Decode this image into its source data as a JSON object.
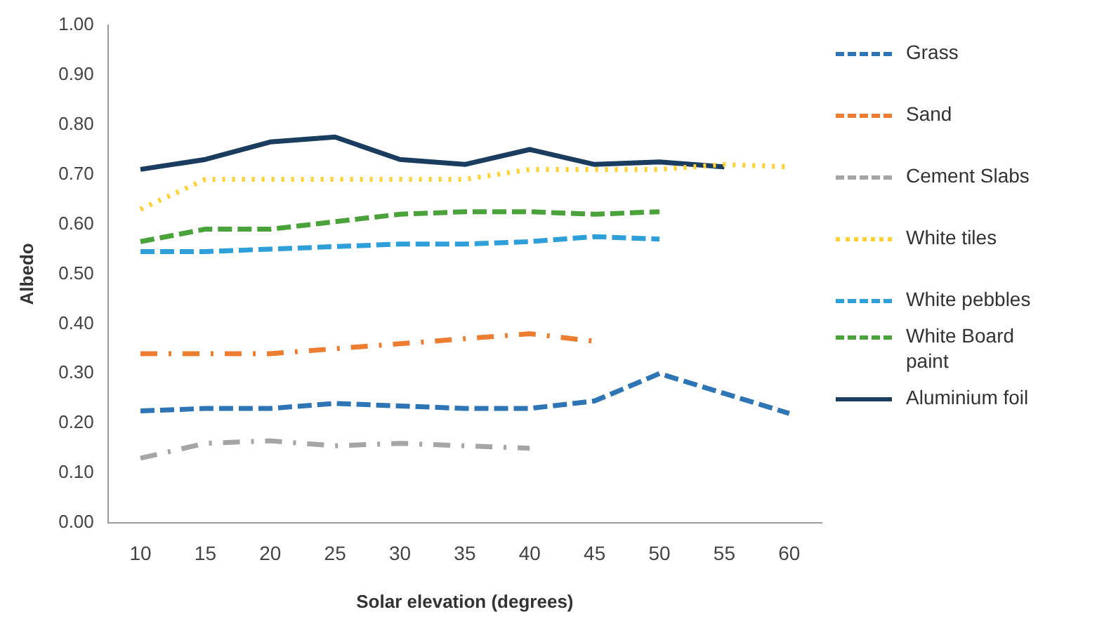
{
  "chart_data": {
    "type": "line",
    "xlabel": "Solar elevation (degrees)",
    "ylabel": "Albedo",
    "categories": [
      "10",
      "15",
      "20",
      "25",
      "30",
      "35",
      "40",
      "45",
      "50",
      "55",
      "60"
    ],
    "ylim": [
      0,
      1
    ],
    "yticks": [
      {
        "value": 0,
        "label": "0.00"
      },
      {
        "value": 0.1,
        "label": "0.10"
      },
      {
        "value": 0.2,
        "label": "0.20"
      },
      {
        "value": 0.3,
        "label": "0.30"
      },
      {
        "value": 0.4,
        "label": "0.40"
      },
      {
        "value": 0.5,
        "label": "0.50"
      },
      {
        "value": 0.6,
        "label": "0.60"
      },
      {
        "value": 0.7,
        "label": "0.70"
      },
      {
        "value": 0.8,
        "label": "0.80"
      },
      {
        "value": 0.9,
        "label": "0.90"
      },
      {
        "value": 1,
        "label": "1.00"
      }
    ],
    "grid": false,
    "legend": "right",
    "marker": "none",
    "series": [
      {
        "name": "Grass",
        "color": "#2e75b6",
        "line_style": "dashed",
        "values": [
          0.225,
          0.23,
          0.23,
          0.24,
          0.235,
          0.23,
          0.23,
          0.245,
          0.3,
          0.26,
          0.22
        ]
      },
      {
        "name": "Sand",
        "color": "#ed7d31",
        "line_style": "dashdot",
        "values": [
          0.34,
          0.34,
          0.34,
          0.35,
          0.36,
          0.37,
          0.38,
          0.365,
          null,
          null,
          null
        ]
      },
      {
        "name": "Cement Slabs",
        "color": "#a5a5a5",
        "line_style": "dashdot",
        "values": [
          0.13,
          0.16,
          0.165,
          0.155,
          0.16,
          0.155,
          0.15,
          null,
          null,
          null,
          null
        ]
      },
      {
        "name": "White tiles",
        "color": "#ffd133",
        "line_style": "dotted",
        "values": [
          0.63,
          0.69,
          0.69,
          0.69,
          0.69,
          0.69,
          0.71,
          0.71,
          0.71,
          0.72,
          0.715
        ]
      },
      {
        "name": "White pebbles",
        "color": "#2e9fd9",
        "line_style": "dashed",
        "values": [
          0.545,
          0.545,
          0.55,
          0.555,
          0.56,
          0.56,
          0.565,
          0.575,
          0.57,
          null,
          null
        ]
      },
      {
        "name": "White Board paint",
        "color": "#4aa33a",
        "line_style": "dashed",
        "values": [
          0.565,
          0.59,
          0.59,
          0.605,
          0.62,
          0.625,
          0.625,
          0.62,
          0.625,
          null,
          null
        ]
      },
      {
        "name": "Aluminium foil",
        "color": "#1a3c5e",
        "line_style": "solid",
        "values": [
          0.71,
          0.73,
          0.765,
          0.775,
          0.73,
          0.72,
          0.75,
          0.72,
          0.725,
          0.715,
          null
        ]
      }
    ]
  }
}
